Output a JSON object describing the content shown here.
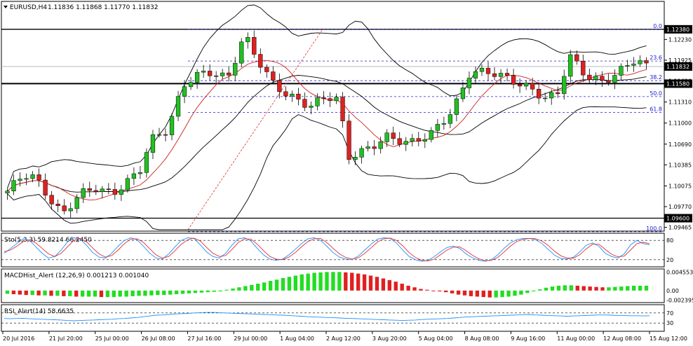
{
  "chart_data": [
    {
      "type": "candlestick",
      "title": "EURUSD,H4  1.11836 1.11868 1.11770 1.11832",
      "symbol": "EURUSD,H4",
      "ohlc_header": "1.11836 1.11868 1.11770 1.11832",
      "ylim": [
        1.0943,
        1.1277
      ],
      "price_ticks": [
        "1.12230",
        "1.11925",
        "1.11620",
        "1.11310",
        "1.11000",
        "1.10690",
        "1.10385",
        "1.10075",
        "1.09770",
        "1.09465"
      ],
      "price_tick_values": [
        1.1223,
        1.11925,
        1.1162,
        1.1131,
        1.11,
        1.1069,
        1.10385,
        1.10075,
        1.0977,
        1.09465
      ],
      "time_labels": [
        "20 Jul 2016",
        "21 Jul 20:00",
        "25 Jul 00:00",
        "26 Jul 08:00",
        "27 Jul 16:00",
        "29 Jul 00:00",
        "1 Aug 04:00",
        "2 Aug 12:00",
        "3 Aug 20:00",
        "5 Aug 04:00",
        "8 Aug 08:00",
        "9 Aug 16:00",
        "11 Aug 00:00",
        "12 Aug 08:00",
        "15 Aug 12:00"
      ],
      "horizontal_levels": [
        {
          "label": "1.12380",
          "value": 1.1238
        },
        {
          "label": "1.11580",
          "value": 1.1158
        },
        {
          "label": "1.09600",
          "value": 1.096
        }
      ],
      "current_price": {
        "label": "1.11832",
        "value": 1.11832
      },
      "fibonacci": [
        {
          "label": "0.0",
          "value": 1.1238
        },
        {
          "label": "23.6",
          "value": 1.11913
        },
        {
          "label": "38.2",
          "value": 1.11624
        },
        {
          "label": "50.0",
          "value": 1.1139
        },
        {
          "label": "61.8",
          "value": 1.11157
        },
        {
          "label": "100.0",
          "value": 1.094
        }
      ],
      "colors": {
        "bull": "#22c022",
        "bear": "#e02020",
        "bands": "#000000",
        "ma": "#cc2020",
        "fib": "#2020cc"
      }
    },
    {
      "type": "line",
      "title": "Sto(5,3,3) 59.8214 66.2450",
      "ylim": [
        0,
        100
      ],
      "ticks": [
        "80",
        "20"
      ],
      "tick_values": [
        80,
        20
      ],
      "series": [
        {
          "values": [
            40,
            55,
            70,
            85,
            80,
            60,
            40,
            25,
            30,
            50,
            75,
            88,
            84,
            65,
            42,
            28,
            25,
            40,
            62,
            80,
            88,
            82,
            62,
            40,
            25,
            22,
            38,
            60,
            80,
            88,
            86,
            66,
            44,
            30,
            25,
            40,
            65,
            85,
            88,
            78,
            55,
            35,
            22,
            18,
            22,
            35,
            52,
            70,
            85,
            88,
            80,
            62,
            42,
            28,
            22,
            20,
            32,
            50,
            68,
            84,
            88,
            86,
            72,
            50,
            30,
            20,
            15,
            18,
            30,
            45,
            58,
            62,
            55,
            38,
            26,
            18,
            15,
            20,
            35,
            55,
            72,
            82,
            86,
            86,
            82,
            70,
            52,
            34,
            24,
            22,
            28,
            45,
            65,
            72,
            62,
            40,
            30,
            25,
            38,
            66,
            80,
            70,
            66
          ]
        },
        {
          "values": [
            45,
            50,
            62,
            76,
            82,
            72,
            55,
            38,
            30,
            40,
            60,
            80,
            86,
            76,
            56,
            38,
            28,
            33,
            50,
            70,
            84,
            85,
            74,
            54,
            35,
            25,
            30,
            48,
            68,
            82,
            87,
            78,
            58,
            40,
            30,
            33,
            52,
            73,
            85,
            84,
            68,
            48,
            30,
            22,
            20,
            28,
            42,
            60,
            76,
            85,
            86,
            73,
            55,
            38,
            27,
            22,
            26,
            40,
            57,
            75,
            85,
            87,
            80,
            63,
            42,
            27,
            18,
            16,
            22,
            36,
            50,
            59,
            60,
            48,
            34,
            23,
            17,
            18,
            27,
            44,
            62,
            76,
            83,
            86,
            85,
            78,
            64,
            46,
            32,
            25,
            25,
            36,
            54,
            68,
            68,
            52,
            37,
            29,
            31,
            50,
            70,
            74,
            70
          ]
        }
      ]
    },
    {
      "type": "bar",
      "title": "MACDHist_Alert (12,26,9)  0.001213 0.001040",
      "ylim": [
        -0.0028,
        0.005
      ],
      "ticks": [
        "0.004553",
        "0.00",
        "-0.002395"
      ],
      "tick_values": [
        0.004553,
        0,
        -0.002395
      ],
      "values": [
        -0.0008,
        -0.0009,
        -0.001,
        -0.0011,
        -0.0011,
        -0.0012,
        -0.0012,
        -0.0013,
        -0.0013,
        -0.0014,
        -0.0014,
        -0.0015,
        -0.0015,
        -0.0015,
        -0.0015,
        -0.0016,
        -0.0016,
        -0.0016,
        -0.0015,
        -0.0015,
        -0.0014,
        -0.0013,
        -0.0013,
        -0.0012,
        -0.0011,
        -0.0011,
        -0.001,
        -0.0009,
        -0.0008,
        -0.0007,
        -0.0006,
        -0.0005,
        -0.0004,
        -0.0003,
        -0.0002,
        0.0002,
        0.0005,
        0.0008,
        0.0011,
        0.0014,
        0.0017,
        0.002,
        0.0024,
        0.0027,
        0.0031,
        0.0034,
        0.0037,
        0.004,
        0.0042,
        0.0044,
        0.0045,
        0.0046,
        0.0046,
        0.0046,
        0.0045,
        0.0044,
        0.0042,
        0.004,
        0.0037,
        0.0034,
        0.003,
        0.0026,
        0.0022,
        0.0017,
        0.0012,
        0.0008,
        0.0004,
        0.0002,
        -0.0001,
        -0.0002,
        -0.0004,
        -0.0007,
        -0.001,
        -0.0012,
        -0.0014,
        -0.0015,
        -0.0016,
        -0.0017,
        -0.0017,
        -0.0016,
        -0.0015,
        -0.0013,
        -0.001,
        -0.0006,
        -0.0002,
        0.0003,
        0.0007,
        0.001,
        0.0012,
        0.0013,
        0.0013,
        0.0012,
        0.0011,
        0.001,
        0.0009,
        0.0008,
        0.0008,
        0.0009,
        0.001,
        0.0011,
        0.0012,
        0.0012,
        0.0012
      ]
    },
    {
      "type": "line",
      "title": "RSI_Alert(14) 58.6635",
      "ylim": [
        0,
        100
      ],
      "ticks": [
        "70",
        "30"
      ],
      "tick_values": [
        70,
        30
      ],
      "values": [
        48,
        47,
        48,
        49,
        47,
        46,
        45,
        44,
        43,
        42,
        40,
        39,
        40,
        41,
        42,
        43,
        44,
        45,
        47,
        48,
        50,
        52,
        55,
        58,
        61,
        62,
        64,
        66,
        67,
        68,
        70,
        71,
        72,
        72,
        71,
        70,
        69,
        68,
        67,
        66,
        65,
        64,
        63,
        62,
        61,
        60,
        58,
        57,
        55,
        54,
        53,
        52,
        51,
        50,
        49,
        48,
        47,
        46,
        45,
        44,
        43,
        42,
        41,
        40,
        41,
        42,
        44,
        45,
        46,
        47,
        48,
        50,
        52,
        54,
        55,
        56,
        57,
        58,
        59,
        60,
        61,
        62,
        63,
        64,
        62,
        61,
        60,
        59,
        58,
        57,
        58,
        59,
        60,
        61,
        62,
        62,
        61,
        60,
        60,
        59,
        59,
        58,
        59
      ]
    }
  ]
}
